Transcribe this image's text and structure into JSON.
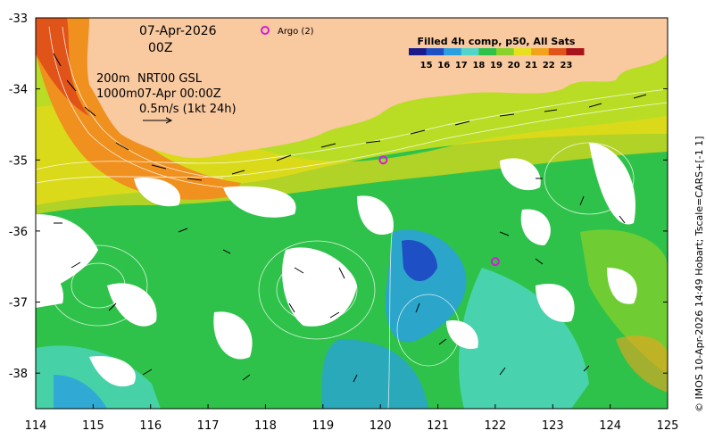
{
  "date_label": "07-Apr-2026",
  "time_label": "00Z",
  "legend": {
    "depth_200": "200m",
    "product": "NRT00 GSL",
    "depth_1000": "1000m07-Apr 00:00Z",
    "vector_scale": "0.5m/s (1kt 24h)"
  },
  "argo_label": "Argo (2)",
  "colorbar": {
    "title": "Filled 4h comp, p50, All Sats",
    "ticks": [
      "15",
      "16",
      "17",
      "18",
      "19",
      "20",
      "21",
      "22",
      "23"
    ],
    "colors": [
      "#1a1a8c",
      "#1f4fc4",
      "#2aa0e0",
      "#4fd6c6",
      "#2ec24a",
      "#8ad12a",
      "#e6e01e",
      "#f2a21c",
      "#e0541a",
      "#a8141a"
    ]
  },
  "credit": "© IMOS 10-Apr-2026 14:49 Hobart; Tscale=CARS+[-1 1]",
  "axes": {
    "x_ticks": [
      "114",
      "115",
      "116",
      "117",
      "118",
      "119",
      "120",
      "121",
      "122",
      "123",
      "124",
      "125"
    ],
    "y_ticks": [
      "-33",
      "-34",
      "-35",
      "-36",
      "-37",
      "-38"
    ]
  },
  "map": {
    "lon_range": [
      114,
      125
    ],
    "lat_range": [
      -38.5,
      -33
    ],
    "land_color": "#f9c9a0",
    "argo_marker_color": "#d21ed2",
    "argo_floats": [
      {
        "lon": 120.05,
        "lat": -35.0
      },
      {
        "lon": 122.0,
        "lat": -36.43
      }
    ]
  }
}
